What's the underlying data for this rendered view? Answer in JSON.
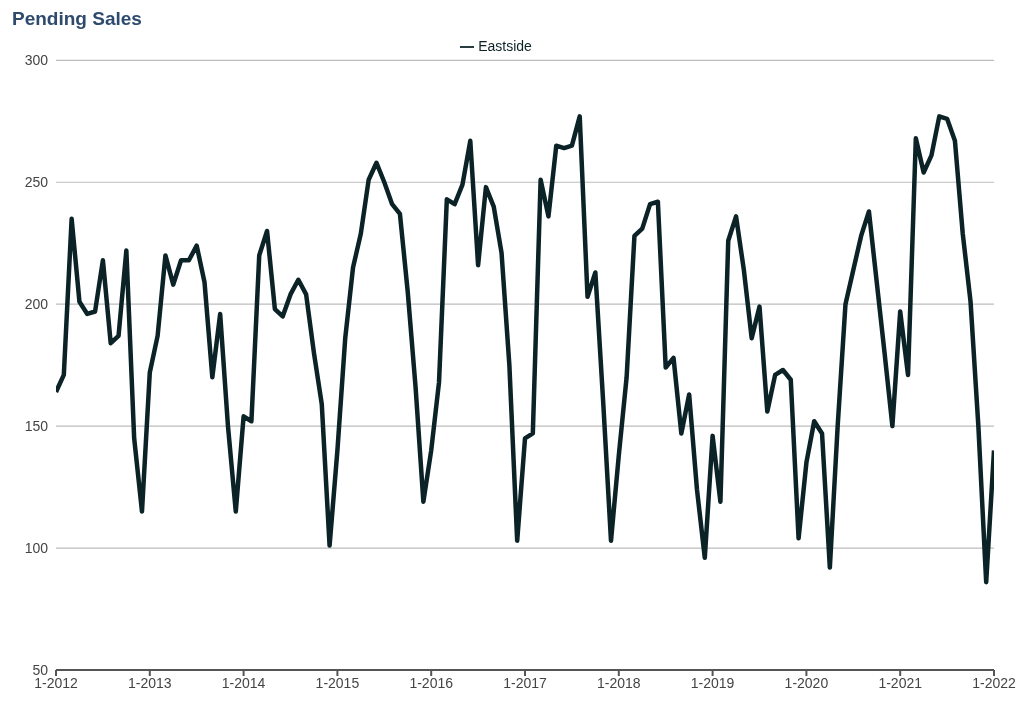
{
  "chart_data": {
    "type": "line",
    "title": "Pending Sales",
    "x": [
      "2012-01",
      "2012-02",
      "2012-03",
      "2012-04",
      "2012-05",
      "2012-06",
      "2012-07",
      "2012-08",
      "2012-09",
      "2012-10",
      "2012-11",
      "2012-12",
      "2013-01",
      "2013-02",
      "2013-03",
      "2013-04",
      "2013-05",
      "2013-06",
      "2013-07",
      "2013-08",
      "2013-09",
      "2013-10",
      "2013-11",
      "2013-12",
      "2014-01",
      "2014-02",
      "2014-03",
      "2014-04",
      "2014-05",
      "2014-06",
      "2014-07",
      "2014-08",
      "2014-09",
      "2014-10",
      "2014-11",
      "2014-12",
      "2015-01",
      "2015-02",
      "2015-03",
      "2015-04",
      "2015-05",
      "2015-06",
      "2015-07",
      "2015-08",
      "2015-09",
      "2015-10",
      "2015-11",
      "2015-12",
      "2016-01",
      "2016-02",
      "2016-03",
      "2016-04",
      "2016-05",
      "2016-06",
      "2016-07",
      "2016-08",
      "2016-09",
      "2016-10",
      "2016-11",
      "2016-12",
      "2017-01",
      "2017-02",
      "2017-03",
      "2017-04",
      "2017-05",
      "2017-06",
      "2017-07",
      "2017-08",
      "2017-09",
      "2017-10",
      "2017-11",
      "2017-12",
      "2018-01",
      "2018-02",
      "2018-03",
      "2018-04",
      "2018-05",
      "2018-06",
      "2018-07",
      "2018-08",
      "2018-09",
      "2018-10",
      "2018-11",
      "2018-12",
      "2019-01",
      "2019-02",
      "2019-03",
      "2019-04",
      "2019-05",
      "2019-06",
      "2019-07",
      "2019-08",
      "2019-09",
      "2019-10",
      "2019-11",
      "2019-12",
      "2020-01",
      "2020-02",
      "2020-03",
      "2020-04",
      "2020-05",
      "2020-06",
      "2020-07",
      "2020-08",
      "2020-09",
      "2020-10",
      "2020-11",
      "2020-12",
      "2021-01",
      "2021-02",
      "2021-03",
      "2021-04",
      "2021-05",
      "2021-06",
      "2021-07",
      "2021-08",
      "2021-09",
      "2021-10",
      "2021-11",
      "2021-12",
      "2022-01"
    ],
    "series": [
      {
        "name": "Eastside",
        "color": "#0b2226",
        "values": [
          164,
          171,
          235,
          201,
          196,
          197,
          218,
          184,
          187,
          222,
          145,
          115,
          172,
          187,
          220,
          208,
          218,
          218,
          224,
          209,
          170,
          196,
          150,
          115,
          154,
          152,
          220,
          230,
          198,
          195,
          204,
          210,
          204,
          180,
          159,
          101,
          140,
          186,
          215,
          229,
          251,
          258,
          250,
          241,
          237,
          205,
          166,
          119,
          140,
          168,
          243,
          241,
          249,
          267,
          216,
          248,
          240,
          221,
          175,
          103,
          145,
          147,
          251,
          236,
          265,
          264,
          265,
          277,
          203,
          213,
          160,
          103,
          138,
          170,
          228,
          231,
          241,
          242,
          174,
          178,
          147,
          163,
          124,
          96,
          146,
          119,
          226,
          236,
          214,
          186,
          199,
          156,
          171,
          173,
          169,
          104,
          135,
          152,
          147,
          92,
          150,
          200,
          214,
          228,
          238,
          209,
          180,
          150,
          197,
          171,
          268,
          254,
          261,
          277,
          276,
          267,
          229,
          201,
          150,
          86,
          140
        ]
      }
    ],
    "xlim": [
      "2012-01",
      "2022-01"
    ],
    "xticks": [
      {
        "value": "2012-01",
        "label": "1-2012"
      },
      {
        "value": "2013-01",
        "label": "1-2013"
      },
      {
        "value": "2014-01",
        "label": "1-2014"
      },
      {
        "value": "2015-01",
        "label": "1-2015"
      },
      {
        "value": "2016-01",
        "label": "1-2016"
      },
      {
        "value": "2017-01",
        "label": "1-2017"
      },
      {
        "value": "2018-01",
        "label": "1-2018"
      },
      {
        "value": "2019-01",
        "label": "1-2019"
      },
      {
        "value": "2020-01",
        "label": "1-2020"
      },
      {
        "value": "2021-01",
        "label": "1-2021"
      },
      {
        "value": "2022-01",
        "label": "1-2022"
      }
    ],
    "ylim": [
      50,
      300
    ],
    "yticks": [
      50,
      100,
      150,
      200,
      250,
      300
    ],
    "grid": "y",
    "legend": "top",
    "marker": "none",
    "line_style": "solid"
  }
}
